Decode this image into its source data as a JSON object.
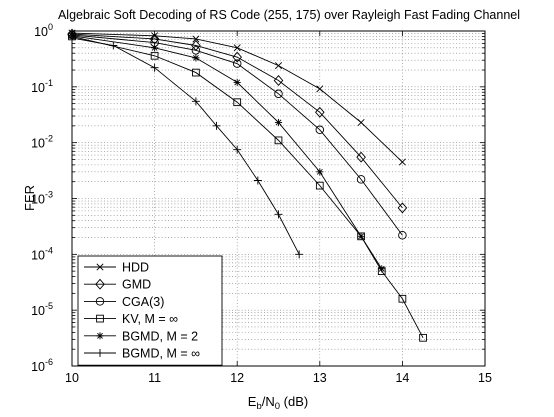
{
  "chart_data": {
    "type": "line",
    "title": "Algebraic Soft Decoding of RS Code (255, 175) over Rayleigh Fast Fading Channel",
    "xlabel": {
      "main": "E",
      "sub1": "b",
      "mid": "/N",
      "sub2": "0",
      "tail": " (dB)"
    },
    "ylabel": "FER",
    "xlim": [
      10,
      15
    ],
    "ylim": [
      1e-06,
      1
    ],
    "yscale": "log",
    "xticks": [
      10,
      11,
      12,
      13,
      14,
      15
    ],
    "xtick_labels": [
      "10",
      "11",
      "12",
      "13",
      "14",
      "15"
    ],
    "yticks": [
      1e-06,
      1e-05,
      0.0001,
      0.001,
      0.01,
      0.1,
      1
    ],
    "ytick_labels": [
      {
        "base": "10",
        "exp": "-6"
      },
      {
        "base": "10",
        "exp": "-5"
      },
      {
        "base": "10",
        "exp": "-4"
      },
      {
        "base": "10",
        "exp": "-3"
      },
      {
        "base": "10",
        "exp": "-2"
      },
      {
        "base": "10",
        "exp": "-1"
      },
      {
        "base": "10",
        "exp": "0"
      }
    ],
    "grid": true,
    "legend_position": "bottom-left",
    "series": [
      {
        "name": "HDD",
        "marker": "x",
        "x": [
          10,
          11,
          11.5,
          12,
          12.5,
          13,
          13.5,
          14
        ],
        "y": [
          0.92,
          0.82,
          0.72,
          0.5,
          0.24,
          0.092,
          0.023,
          0.0045
        ]
      },
      {
        "name": "GMD",
        "marker": "diamond",
        "x": [
          10,
          11,
          11.5,
          12,
          12.5,
          13,
          13.5,
          14
        ],
        "y": [
          0.88,
          0.72,
          0.55,
          0.34,
          0.13,
          0.035,
          0.0055,
          0.00068
        ]
      },
      {
        "name": "CGA(3)",
        "marker": "circle",
        "x": [
          10,
          11,
          11.5,
          12,
          12.5,
          13,
          13.5,
          14
        ],
        "y": [
          0.85,
          0.62,
          0.45,
          0.26,
          0.075,
          0.017,
          0.0022,
          0.00022
        ]
      },
      {
        "name": "KV, M = ∞",
        "marker": "square",
        "x": [
          10,
          11,
          11.5,
          12,
          12.5,
          13,
          13.5,
          13.75,
          14,
          14.25
        ],
        "y": [
          0.8,
          0.36,
          0.18,
          0.053,
          0.011,
          0.0017,
          0.00021,
          5e-05,
          1.6e-05,
          3.2e-06
        ]
      },
      {
        "name": "BGMD, M = 2",
        "marker": "star",
        "x": [
          10,
          11,
          11.5,
          12,
          12.5,
          13,
          13.5,
          13.75
        ],
        "y": [
          0.82,
          0.5,
          0.33,
          0.12,
          0.023,
          0.003,
          0.00021,
          5.5e-05
        ]
      },
      {
        "name": "BGMD, M = ∞",
        "marker": "plus",
        "x": [
          10,
          10.5,
          11,
          11.5,
          11.75,
          12,
          12.25,
          12.5,
          12.75
        ],
        "y": [
          0.75,
          0.55,
          0.22,
          0.055,
          0.02,
          0.0075,
          0.0021,
          0.00052,
          0.0001
        ]
      }
    ]
  }
}
